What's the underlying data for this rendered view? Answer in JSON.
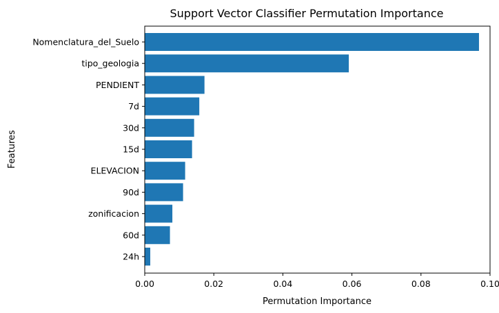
{
  "chart_data": {
    "type": "bar",
    "orientation": "horizontal",
    "title": "Support Vector Classifier Permutation Importance",
    "xlabel": "Permutation Importance",
    "ylabel": "Features",
    "categories": [
      "Nomenclatura_del_Suelo",
      "tipo_geologia",
      "PENDIENT",
      "7d",
      "30d",
      "15d",
      "ELEVACION",
      "90d",
      "zonificacion",
      "60d",
      "24h"
    ],
    "values": [
      0.0968,
      0.0591,
      0.0173,
      0.0158,
      0.0143,
      0.0137,
      0.0117,
      0.0111,
      0.008,
      0.0073,
      0.0016
    ],
    "xlim": [
      0.0,
      0.1
    ],
    "xticks": [
      0.0,
      0.02,
      0.04,
      0.06,
      0.08,
      0.1
    ],
    "xtick_labels": [
      "0.00",
      "0.02",
      "0.04",
      "0.06",
      "0.08",
      "0.10"
    ],
    "bar_color": "#1f77b4",
    "grid": false
  }
}
